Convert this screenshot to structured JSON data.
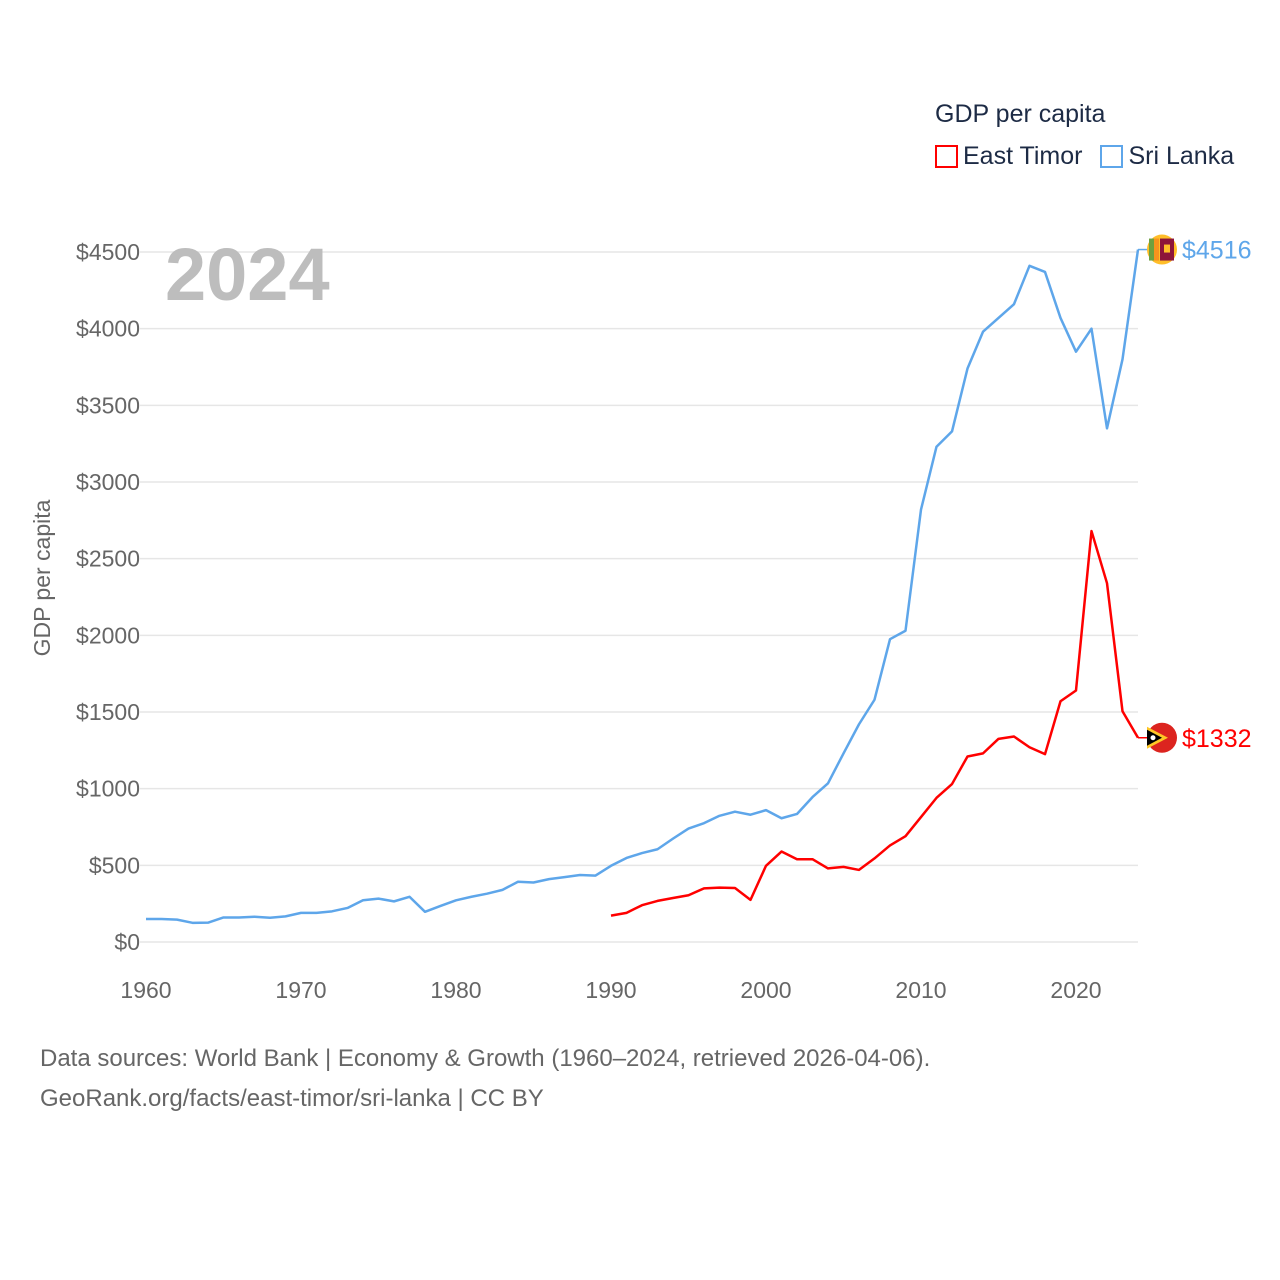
{
  "chart_data": {
    "type": "line",
    "title": "2024",
    "xlabel": "",
    "ylabel": "GDP per capita",
    "xlim": [
      1960,
      2024
    ],
    "ylim": [
      0,
      4500
    ],
    "x_ticks": [
      1960,
      1970,
      1980,
      1990,
      2000,
      2010,
      2020
    ],
    "y_ticks": [
      0,
      500,
      1000,
      1500,
      2000,
      2500,
      3000,
      3500,
      4000,
      4500
    ],
    "y_tick_labels": [
      "$0",
      "$500",
      "$1000",
      "$1500",
      "$2000",
      "$2500",
      "$3000",
      "$3500",
      "$4000",
      "$4500"
    ],
    "grid": true,
    "legend_title": "GDP per capita",
    "legend_position": "top-right",
    "series": [
      {
        "name": "East Timor",
        "color": "#ff0000",
        "end_label": "$1332",
        "start_year": 1990,
        "values": [
          172,
          190,
          240,
          268,
          287,
          305,
          350,
          355,
          352,
          275,
          497,
          590,
          540,
          540,
          480,
          490,
          470,
          545,
          630,
          690,
          815,
          940,
          1030,
          1210,
          1230,
          1325,
          1340,
          1270,
          1225,
          1570,
          1640,
          2680,
          2340,
          1505,
          1332
        ]
      },
      {
        "name": "Sri Lanka",
        "color": "#5ea6ea",
        "end_label": "$4516",
        "start_year": 1960,
        "values": [
          150,
          150,
          146,
          125,
          126,
          160,
          160,
          165,
          158,
          167,
          190,
          190,
          200,
          222,
          272,
          283,
          265,
          295,
          197,
          235,
          272,
          295,
          315,
          340,
          393,
          388,
          410,
          423,
          437,
          433,
          497,
          548,
          580,
          605,
          674,
          740,
          775,
          823,
          850,
          830,
          860,
          807,
          835,
          945,
          1035,
          1230,
          1420,
          1580,
          1975,
          2030,
          2820,
          3230,
          3330,
          3740,
          3980,
          4070,
          4160,
          4410,
          4370,
          4070,
          3850,
          4000,
          3350,
          3800,
          4516
        ]
      }
    ]
  },
  "footer": {
    "line1": "Data sources: World Bank | Economy & Growth (1960–2024, retrieved 2026-04-06).",
    "line2": "GeoRank.org/facts/east-timor/sri-lanka | CC BY"
  }
}
